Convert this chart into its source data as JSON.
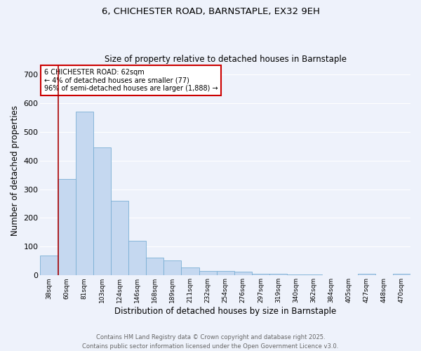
{
  "title_line1": "6, CHICHESTER ROAD, BARNSTAPLE, EX32 9EH",
  "title_line2": "Size of property relative to detached houses in Barnstaple",
  "xlabel": "Distribution of detached houses by size in Barnstaple",
  "ylabel": "Number of detached properties",
  "bar_labels": [
    "38sqm",
    "60sqm",
    "81sqm",
    "103sqm",
    "124sqm",
    "146sqm",
    "168sqm",
    "189sqm",
    "211sqm",
    "232sqm",
    "254sqm",
    "276sqm",
    "297sqm",
    "319sqm",
    "340sqm",
    "362sqm",
    "384sqm",
    "405sqm",
    "427sqm",
    "448sqm",
    "470sqm"
  ],
  "bar_values": [
    70,
    335,
    570,
    445,
    260,
    120,
    62,
    52,
    28,
    15,
    15,
    12,
    5,
    5,
    4,
    2,
    1,
    1,
    5,
    1,
    5
  ],
  "bar_color": "#c5d8f0",
  "bar_edge_color": "#7aafd4",
  "vline_color": "#aa0000",
  "annotation_text": "6 CHICHESTER ROAD: 62sqm\n← 4% of detached houses are smaller (77)\n96% of semi-detached houses are larger (1,888) →",
  "annotation_box_color": "#ffffff",
  "annotation_box_edge": "#cc0000",
  "ylim": [
    0,
    730
  ],
  "yticks": [
    0,
    100,
    200,
    300,
    400,
    500,
    600,
    700
  ],
  "footer_line1": "Contains HM Land Registry data © Crown copyright and database right 2025.",
  "footer_line2": "Contains public sector information licensed under the Open Government Licence v3.0.",
  "bg_color": "#eef2fb",
  "grid_color": "#ffffff"
}
